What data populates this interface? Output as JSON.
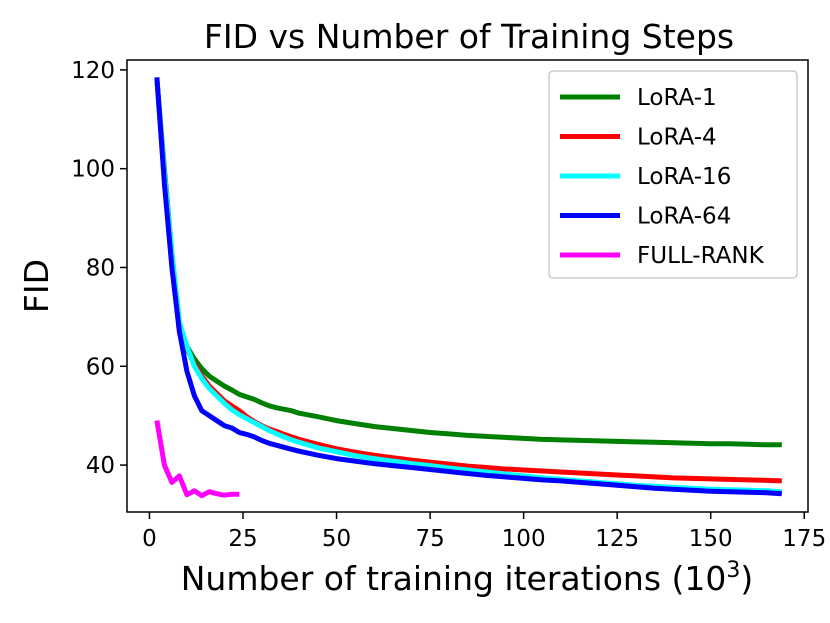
{
  "chart_data": {
    "type": "line",
    "title": "FID vs Number of Training Steps",
    "xlabel": "Number of training iterations (10",
    "xlabel_exp": "3",
    "xlabel_close": ")",
    "ylabel": "FID",
    "xlim": [
      -6,
      176
    ],
    "ylim": [
      30.5,
      122
    ],
    "xticks": [
      0,
      25,
      50,
      75,
      100,
      125,
      150,
      175
    ],
    "yticks": [
      40,
      60,
      80,
      100,
      120
    ],
    "legend_position": "top-right",
    "series": [
      {
        "name": "LoRA-1",
        "color": "#008000",
        "x": [
          2,
          4,
          6,
          8,
          10,
          12,
          14,
          16,
          18,
          20,
          22,
          24,
          26,
          28,
          30,
          32,
          34,
          36,
          38,
          40,
          45,
          50,
          55,
          60,
          65,
          70,
          75,
          80,
          85,
          90,
          95,
          100,
          105,
          110,
          115,
          120,
          125,
          130,
          135,
          140,
          145,
          150,
          155,
          160,
          165,
          169
        ],
        "y": [
          118,
          100,
          83,
          68,
          64,
          61.5,
          59.5,
          58,
          57,
          56,
          55.2,
          54.3,
          53.8,
          53.3,
          52.6,
          52,
          51.6,
          51.3,
          51,
          50.5,
          49.8,
          49,
          48.4,
          47.8,
          47.4,
          47,
          46.6,
          46.3,
          46,
          45.8,
          45.6,
          45.4,
          45.2,
          45.1,
          45,
          44.9,
          44.8,
          44.7,
          44.6,
          44.5,
          44.4,
          44.3,
          44.3,
          44.2,
          44.1,
          44.1
        ]
      },
      {
        "name": "LoRA-4",
        "color": "#ff0000",
        "x": [
          2,
          4,
          6,
          8,
          10,
          12,
          14,
          16,
          18,
          20,
          22,
          24,
          26,
          28,
          30,
          32,
          34,
          36,
          38,
          40,
          45,
          50,
          55,
          60,
          65,
          70,
          75,
          80,
          85,
          90,
          95,
          100,
          105,
          110,
          115,
          120,
          125,
          130,
          135,
          140,
          145,
          150,
          155,
          160,
          165,
          169
        ],
        "y": [
          118,
          98,
          82,
          67,
          63.5,
          60.5,
          58,
          56,
          54.5,
          53,
          52,
          51,
          49.8,
          48.8,
          48,
          47.3,
          46.8,
          46.2,
          45.7,
          45.2,
          44.2,
          43.3,
          42.6,
          42,
          41.5,
          41,
          40.6,
          40.2,
          39.8,
          39.5,
          39.2,
          39,
          38.8,
          38.6,
          38.4,
          38.2,
          38,
          37.8,
          37.6,
          37.4,
          37.3,
          37.2,
          37.1,
          37,
          36.9,
          36.8
        ]
      },
      {
        "name": "LoRA-16",
        "color": "#00ffff",
        "x": [
          2,
          4,
          6,
          8,
          10,
          12,
          14,
          16,
          18,
          20,
          22,
          24,
          26,
          28,
          30,
          32,
          34,
          36,
          38,
          40,
          45,
          50,
          55,
          60,
          65,
          70,
          75,
          80,
          85,
          90,
          95,
          100,
          105,
          110,
          115,
          120,
          125,
          130,
          135,
          140,
          145,
          150,
          155,
          160,
          165,
          169
        ],
        "y": [
          118,
          99,
          83,
          69,
          64,
          60,
          57.5,
          55.5,
          54,
          52.5,
          51.2,
          50.2,
          49.4,
          48.6,
          47.8,
          47,
          46.3,
          45.7,
          45.1,
          44.6,
          43.5,
          42.7,
          41.9,
          41.3,
          40.8,
          40.3,
          39.9,
          39.4,
          39,
          38.6,
          38.2,
          37.8,
          37.4,
          37.1,
          36.8,
          36.5,
          36.2,
          35.9,
          35.7,
          35.5,
          35.3,
          35.1,
          35,
          34.9,
          34.8,
          34.6
        ]
      },
      {
        "name": "LoRA-64",
        "color": "#0000ff",
        "x": [
          2,
          4,
          6,
          8,
          10,
          12,
          14,
          16,
          18,
          20,
          22,
          24,
          26,
          28,
          30,
          32,
          34,
          36,
          38,
          40,
          45,
          50,
          55,
          60,
          65,
          70,
          75,
          80,
          85,
          90,
          95,
          100,
          105,
          110,
          115,
          120,
          125,
          130,
          135,
          140,
          145,
          150,
          155,
          160,
          165,
          169
        ],
        "y": [
          118.5,
          97,
          80,
          67,
          59,
          54,
          51,
          50,
          49,
          48,
          47.5,
          46.6,
          46.2,
          45.7,
          45,
          44.4,
          44,
          43.6,
          43.2,
          42.8,
          42,
          41.3,
          40.8,
          40.3,
          39.9,
          39.5,
          39.1,
          38.7,
          38.3,
          37.9,
          37.6,
          37.3,
          37,
          36.8,
          36.5,
          36.2,
          35.9,
          35.6,
          35.3,
          35.1,
          34.9,
          34.7,
          34.6,
          34.5,
          34.4,
          34.2
        ]
      },
      {
        "name": "FULL-RANK",
        "color": "#ff00ff",
        "x": [
          2,
          4,
          6,
          8,
          10,
          12,
          14,
          16,
          18,
          20,
          22,
          24
        ],
        "y": [
          49,
          40,
          36.5,
          37.8,
          34,
          34.8,
          33.8,
          34.6,
          34.2,
          33.9,
          34.1,
          34.1
        ]
      }
    ]
  }
}
